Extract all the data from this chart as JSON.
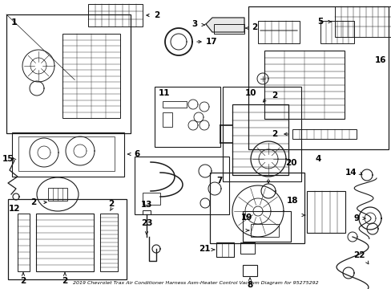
{
  "title": "2019 Chevrolet Trax Air Conditioner Harness Asm-Heater Control Vacuum Diagram for 95275292",
  "bg_color": "#ffffff",
  "line_color": "#1a1a1a",
  "text_color": "#000000",
  "fig_width": 4.89,
  "fig_height": 3.6,
  "dpi": 100
}
